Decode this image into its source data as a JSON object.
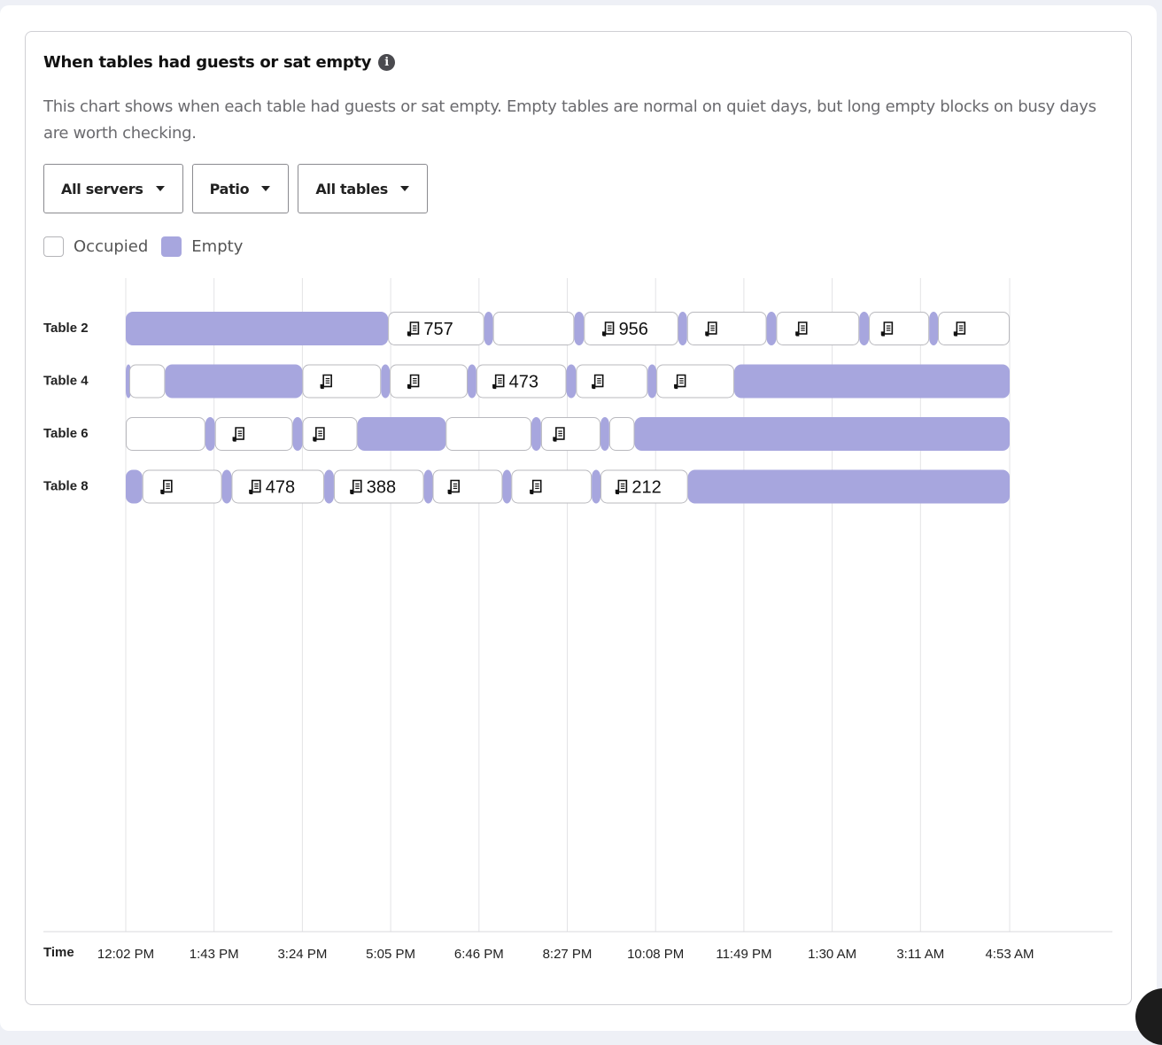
{
  "header": {
    "title": "When tables had guests or sat empty",
    "info_icon": "info-icon"
  },
  "description": "This chart shows when each table had guests or sat empty. Empty tables are normal on quiet days, but long empty blocks on busy days are worth checking.",
  "filters": [
    {
      "label": "All servers"
    },
    {
      "label": "Patio"
    },
    {
      "label": "All tables"
    }
  ],
  "legend": [
    {
      "label": "Occupied",
      "color": "#ffffff"
    },
    {
      "label": "Empty",
      "color": "#a7a6de"
    }
  ],
  "chart_data": {
    "type": "timeline",
    "xlabel": "Time",
    "x_ticks": [
      "12:02 PM",
      "1:43 PM",
      "3:24 PM",
      "5:05 PM",
      "6:46 PM",
      "8:27 PM",
      "10:08 PM",
      "11:49 PM",
      "1:30 AM",
      "3:11 AM",
      "4:53 AM"
    ],
    "x_range": [
      "12:02 PM",
      "4:53 AM"
    ],
    "colors": {
      "occupied": "#ffffff",
      "empty": "#a7a6de"
    },
    "rows": [
      {
        "name": "Table 2",
        "segments": [
          {
            "start": "12:02 PM",
            "end": "5:02 PM",
            "status": "empty"
          },
          {
            "start": "5:02 PM",
            "end": "6:52 PM",
            "status": "occupied",
            "check": "757"
          },
          {
            "start": "6:52 PM",
            "end": "7:02 PM",
            "status": "empty"
          },
          {
            "start": "7:02 PM",
            "end": "8:35 PM",
            "status": "occupied"
          },
          {
            "start": "8:35 PM",
            "end": "8:46 PM",
            "status": "empty"
          },
          {
            "start": "8:46 PM",
            "end": "10:34 PM",
            "status": "occupied",
            "check": "956"
          },
          {
            "start": "10:34 PM",
            "end": "10:44 PM",
            "status": "empty"
          },
          {
            "start": "10:44 PM",
            "end": "12:15 AM",
            "status": "occupied",
            "check": ""
          },
          {
            "start": "12:15 AM",
            "end": "12:26 AM",
            "status": "empty"
          },
          {
            "start": "12:26 AM",
            "end": "2:01 AM",
            "status": "occupied",
            "check": ""
          },
          {
            "start": "2:01 AM",
            "end": "2:12 AM",
            "status": "empty"
          },
          {
            "start": "2:12 AM",
            "end": "3:21 AM",
            "status": "occupied",
            "check": ""
          },
          {
            "start": "3:21 AM",
            "end": "3:31 AM",
            "status": "empty"
          },
          {
            "start": "3:31 AM",
            "end": "4:53 AM",
            "status": "occupied",
            "check": ""
          }
        ]
      },
      {
        "name": "Table 4",
        "segments": [
          {
            "start": "12:02 PM",
            "end": "12:06 PM",
            "status": "empty"
          },
          {
            "start": "12:06 PM",
            "end": "12:47 PM",
            "status": "occupied"
          },
          {
            "start": "12:47 PM",
            "end": "3:24 PM",
            "status": "empty"
          },
          {
            "start": "3:24 PM",
            "end": "4:54 PM",
            "status": "occupied",
            "check": ""
          },
          {
            "start": "4:54 PM",
            "end": "5:04 PM",
            "status": "empty"
          },
          {
            "start": "5:04 PM",
            "end": "6:33 PM",
            "status": "occupied",
            "check": ""
          },
          {
            "start": "6:33 PM",
            "end": "6:43 PM",
            "status": "empty"
          },
          {
            "start": "6:43 PM",
            "end": "8:26 PM",
            "status": "occupied",
            "check": "473"
          },
          {
            "start": "8:26 PM",
            "end": "8:37 PM",
            "status": "empty"
          },
          {
            "start": "8:37 PM",
            "end": "9:59 PM",
            "status": "occupied",
            "check": ""
          },
          {
            "start": "9:59 PM",
            "end": "10:09 PM",
            "status": "empty"
          },
          {
            "start": "10:09 PM",
            "end": "11:38 PM",
            "status": "occupied",
            "check": ""
          },
          {
            "start": "11:38 PM",
            "end": "4:53 AM",
            "status": "empty"
          }
        ]
      },
      {
        "name": "Table 6",
        "segments": [
          {
            "start": "12:02 PM",
            "end": "1:33 PM",
            "status": "occupied"
          },
          {
            "start": "1:33 PM",
            "end": "1:44 PM",
            "status": "empty"
          },
          {
            "start": "1:44 PM",
            "end": "3:13 PM",
            "status": "occupied",
            "check": ""
          },
          {
            "start": "3:13 PM",
            "end": "3:24 PM",
            "status": "empty"
          },
          {
            "start": "3:24 PM",
            "end": "4:27 PM",
            "status": "occupied",
            "check": ""
          },
          {
            "start": "4:27 PM",
            "end": "6:08 PM",
            "status": "empty"
          },
          {
            "start": "6:08 PM",
            "end": "7:46 PM",
            "status": "occupied"
          },
          {
            "start": "7:46 PM",
            "end": "7:57 PM",
            "status": "empty"
          },
          {
            "start": "7:57 PM",
            "end": "9:05 PM",
            "status": "occupied",
            "check": ""
          },
          {
            "start": "9:05 PM",
            "end": "9:15 PM",
            "status": "empty"
          },
          {
            "start": "9:15 PM",
            "end": "9:44 PM",
            "status": "occupied"
          },
          {
            "start": "9:44 PM",
            "end": "4:53 AM",
            "status": "empty"
          }
        ]
      },
      {
        "name": "Table 8",
        "segments": [
          {
            "start": "12:02 PM",
            "end": "12:21 PM",
            "status": "empty"
          },
          {
            "start": "12:21 PM",
            "end": "1:52 PM",
            "status": "occupied",
            "check": ""
          },
          {
            "start": "1:52 PM",
            "end": "2:03 PM",
            "status": "empty"
          },
          {
            "start": "2:03 PM",
            "end": "3:49 PM",
            "status": "occupied",
            "check": "478"
          },
          {
            "start": "3:49 PM",
            "end": "4:00 PM",
            "status": "empty"
          },
          {
            "start": "4:00 PM",
            "end": "5:43 PM",
            "status": "occupied",
            "check": "388"
          },
          {
            "start": "5:43 PM",
            "end": "5:53 PM",
            "status": "empty"
          },
          {
            "start": "5:53 PM",
            "end": "7:13 PM",
            "status": "occupied",
            "check": ""
          },
          {
            "start": "7:13 PM",
            "end": "7:23 PM",
            "status": "empty"
          },
          {
            "start": "7:23 PM",
            "end": "8:55 PM",
            "status": "occupied",
            "check": ""
          },
          {
            "start": "8:55 PM",
            "end": "9:05 PM",
            "status": "empty"
          },
          {
            "start": "9:05 PM",
            "end": "10:45 PM",
            "status": "occupied",
            "check": "212"
          },
          {
            "start": "10:45 PM",
            "end": "4:53 AM",
            "status": "empty"
          }
        ]
      }
    ]
  }
}
